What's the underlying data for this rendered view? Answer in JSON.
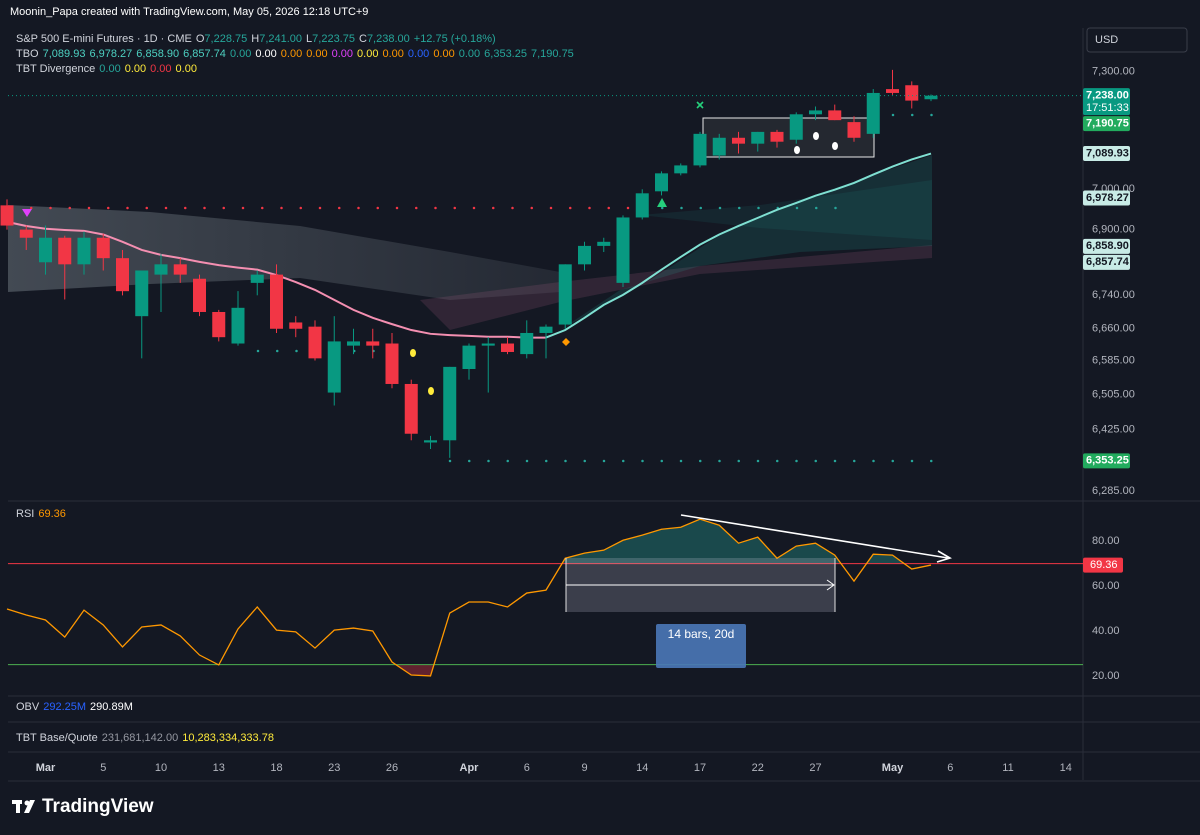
{
  "header": {
    "attribution": "Moonin_Papa created with TradingView.com, May 05, 2026 12:18 UTC+9"
  },
  "legend": {
    "symbol": "S&P 500 E-mini Futures · 1D · CME",
    "ohlc": [
      {
        "key": "O",
        "value": "7,228.75"
      },
      {
        "key": "H",
        "value": "7,241.00"
      },
      {
        "key": "L",
        "value": "7,223.75"
      },
      {
        "key": "C",
        "value": "7,238.00"
      }
    ],
    "change": "+12.75 (+0.18%)",
    "tbo": {
      "name": "TBO",
      "values": [
        "7,089.93",
        "6,978.27",
        "6,858.90",
        "6,857.74",
        "0.00",
        "0.00",
        "0.00",
        "0.00",
        "0.00",
        "0.00",
        "0.00",
        "0.00",
        "0.00",
        "0.00",
        "6,353.25",
        "7,190.75"
      ],
      "colors": [
        "#4dd0c1",
        "#4dd0c1",
        "#4dd0c1",
        "#4dd0c1",
        "#26a69a",
        "#ffffff",
        "#ff9800",
        "#ff9800",
        "#e040fb",
        "#ffeb3b",
        "#ff9800",
        "#2962ff",
        "#ff9800",
        "#26a69a",
        "#26a69a",
        "#26a69a"
      ]
    },
    "divergence": {
      "name": "TBT Divergence",
      "values": [
        "0.00",
        "0.00",
        "0.00",
        "0.00"
      ],
      "colors": [
        "#26a69a",
        "#ffeb3b",
        "#f23645",
        "#ffeb3b"
      ]
    },
    "obv": {
      "name": "OBV",
      "values": [
        "292.25M",
        "290.89M"
      ],
      "colors": [
        "#2962ff",
        "#ffffff"
      ]
    },
    "base_quote": {
      "name": "TBT Base/Quote",
      "values": [
        "231,681,142.00",
        "10,283,334,333.78"
      ],
      "colors": [
        "#9598a1",
        "#ffeb3b"
      ]
    }
  },
  "currency": "USD",
  "annotations": {
    "measure": "14 bars, 20d"
  },
  "logo": "TradingView",
  "chart_data": [
    {
      "type": "candlestick",
      "categories": [
        null,
        null,
        "Mar",
        null,
        null,
        "5",
        null,
        null,
        "10",
        null,
        null,
        "13",
        null,
        null,
        "18",
        null,
        null,
        "23",
        null,
        null,
        "26",
        null,
        null,
        null,
        "Apr",
        null,
        null,
        "6",
        null,
        null,
        "9",
        null,
        null,
        "14",
        null,
        null,
        "17",
        null,
        null,
        "22",
        null,
        null,
        "27",
        null,
        null,
        null,
        "May",
        null,
        null,
        "6",
        null,
        null,
        "11",
        null,
        null,
        "14"
      ],
      "open": [
        6960,
        6900,
        6820,
        6880,
        6815,
        6880,
        6830,
        6690,
        6790,
        6815,
        6780,
        6700,
        6625,
        6770,
        6790,
        6675,
        6665,
        6510,
        6620,
        6630,
        6625,
        6530,
        6395,
        6400,
        6565,
        6620,
        6625,
        6600,
        6650,
        6670,
        6815,
        6860,
        6770,
        6930,
        6995,
        7040,
        7060,
        7085,
        7130,
        7115,
        7145,
        7125,
        7190,
        7200,
        7170,
        7140,
        7255,
        7265,
        7228.75,
        null,
        null,
        null,
        null,
        null,
        null,
        null
      ],
      "high": [
        6975,
        6910,
        6910,
        6885,
        6895,
        6890,
        6850,
        6800,
        6840,
        6830,
        6790,
        6705,
        6750,
        6800,
        6815,
        6690,
        6680,
        6690,
        6660,
        6660,
        6650,
        6540,
        6410,
        6570,
        6625,
        6640,
        6640,
        6680,
        6670,
        6815,
        6870,
        6880,
        6935,
        7000,
        7045,
        7065,
        7145,
        7140,
        7145,
        7145,
        7150,
        7195,
        7210,
        7215,
        7185,
        7255,
        7305,
        7275,
        7241,
        null,
        null,
        null,
        null,
        null,
        null,
        null
      ],
      "low": [
        6900,
        6850,
        6790,
        6730,
        6790,
        6800,
        6740,
        6590,
        6700,
        6770,
        6690,
        6630,
        6620,
        6740,
        6650,
        6640,
        6585,
        6480,
        6600,
        6590,
        6520,
        6400,
        6380,
        6360,
        6540,
        6510,
        6600,
        6590,
        6590,
        6660,
        6800,
        6845,
        6760,
        6925,
        6985,
        7035,
        7055,
        7075,
        7090,
        7095,
        7105,
        7115,
        7175,
        7175,
        7120,
        7130,
        7240,
        7205,
        7223.75,
        null,
        null,
        null,
        null,
        null,
        null,
        null
      ],
      "close": [
        6910,
        6880,
        6880,
        6815,
        6880,
        6830,
        6750,
        6800,
        6815,
        6790,
        6700,
        6640,
        6710,
        6790,
        6660,
        6660,
        6590,
        6630,
        6630,
        6620,
        6530,
        6415,
        6400,
        6570,
        6620,
        6625,
        6605,
        6650,
        6665,
        6815,
        6860,
        6870,
        6930,
        6990,
        7040,
        7060,
        7140,
        7130,
        7115,
        7145,
        7120,
        7190,
        7200,
        7175,
        7130,
        7245,
        7245,
        7225.25,
        7238,
        null,
        null,
        null,
        null,
        null,
        null,
        null
      ],
      "up_color": "#089981",
      "down_color": "#f23645",
      "overlays": [
        {
          "color": "#f48fb1",
          "values": [
            6919,
            6909,
            6902,
            6899,
            6897,
            6888,
            6870,
            6850,
            6838,
            6830,
            6821,
            6813,
            6807,
            6802,
            6789,
            6772,
            6753,
            6729,
            6705,
            6686,
            6671,
            6657,
            6648,
            6645,
            6643,
            6641,
            6641,
            6639,
            6639,
            null,
            null,
            null,
            null,
            null,
            null,
            null,
            null,
            null,
            null,
            null,
            null,
            null,
            null,
            null,
            null,
            null,
            null,
            null,
            null,
            null,
            null,
            null,
            null,
            null,
            null,
            null
          ]
        },
        {
          "color": "#7fe0d2",
          "values": [
            null,
            null,
            null,
            null,
            null,
            null,
            null,
            null,
            null,
            null,
            null,
            null,
            null,
            null,
            null,
            null,
            null,
            null,
            null,
            null,
            null,
            null,
            null,
            null,
            null,
            null,
            null,
            null,
            6639,
            6657,
            6686,
            6717,
            6741,
            6770,
            6802,
            6833,
            6863,
            6888,
            6909,
            6929,
            6949,
            6966,
            6984,
            6999,
            7016,
            7037,
            7057,
            7075,
            7089.93,
            null,
            null,
            null,
            null,
            null,
            null,
            null
          ]
        }
      ],
      "ylim": [
        6265,
        7415
      ],
      "log_scale": true,
      "grid": false,
      "yticks": [
        {
          "value": 7300,
          "label": "7,300.00"
        },
        {
          "value": 7000,
          "label": "7,000.00"
        },
        {
          "value": 6900,
          "label": "6,900.00"
        },
        {
          "value": 6740,
          "label": "6,740.00"
        },
        {
          "value": 6660,
          "label": "6,660.00"
        },
        {
          "value": 6585,
          "label": "6,585.00"
        },
        {
          "value": 6505,
          "label": "6,505.00"
        },
        {
          "value": 6425,
          "label": "6,425.00"
        },
        {
          "value": 6285,
          "label": "6,285.00"
        }
      ],
      "last_price": 7238,
      "countdown": "17:51:33",
      "price_labels": [
        {
          "value": 7238,
          "label": "7,238.00",
          "color": "#089981",
          "text_color": "#ffffff"
        },
        {
          "value": 7190.75,
          "label": "7,190.75",
          "color": "#22ab5e",
          "text_color": "#ffffff"
        },
        {
          "value": 7089.93,
          "label": "7,089.93",
          "color": "#c8ebe6",
          "text_color": "#131722"
        },
        {
          "value": 6978.27,
          "label": "6,978.27",
          "color": "#c8ebe6",
          "text_color": "#131722"
        },
        {
          "value": 6858.9,
          "label": "6,858.90",
          "color": "#c8ebe6",
          "text_color": "#131722"
        },
        {
          "value": 6857.74,
          "label": "6,857.74",
          "color": "#c8ebe6",
          "text_color": "#131722"
        },
        {
          "value": 6353.25,
          "label": "6,353.25",
          "color": "#22ab5e",
          "text_color": "#ffffff"
        }
      ]
    },
    {
      "type": "line",
      "title": "RSI",
      "color": "#ff9800",
      "values": [
        49.8,
        47.1,
        44.9,
        37.3,
        49.3,
        42.7,
        32.9,
        41.8,
        42.7,
        37.8,
        29.3,
        24.9,
        40.9,
        50.7,
        40.4,
        39.6,
        32.4,
        40.4,
        41.3,
        40,
        26.2,
        20.4,
        20,
        48,
        52.9,
        52.9,
        50.7,
        56.9,
        58.2,
        72.4,
        74.7,
        76,
        80.4,
        82.7,
        85.3,
        86.2,
        89.8,
        87.1,
        79.1,
        81.8,
        72.4,
        77.8,
        79.1,
        73.8,
        62.2,
        74.2,
        73.8,
        67.6,
        69.36
      ],
      "ylim": [
        11.5,
        97
      ],
      "yticks": [
        {
          "value": 80,
          "label": "80.00"
        },
        {
          "value": 60,
          "label": "60.00"
        },
        {
          "value": 40,
          "label": "40.00"
        },
        {
          "value": 20,
          "label": "20.00"
        }
      ],
      "upper_band": 70,
      "lower_band": 25,
      "upper_color": "#f23645",
      "lower_color": "#4caf50"
    }
  ]
}
